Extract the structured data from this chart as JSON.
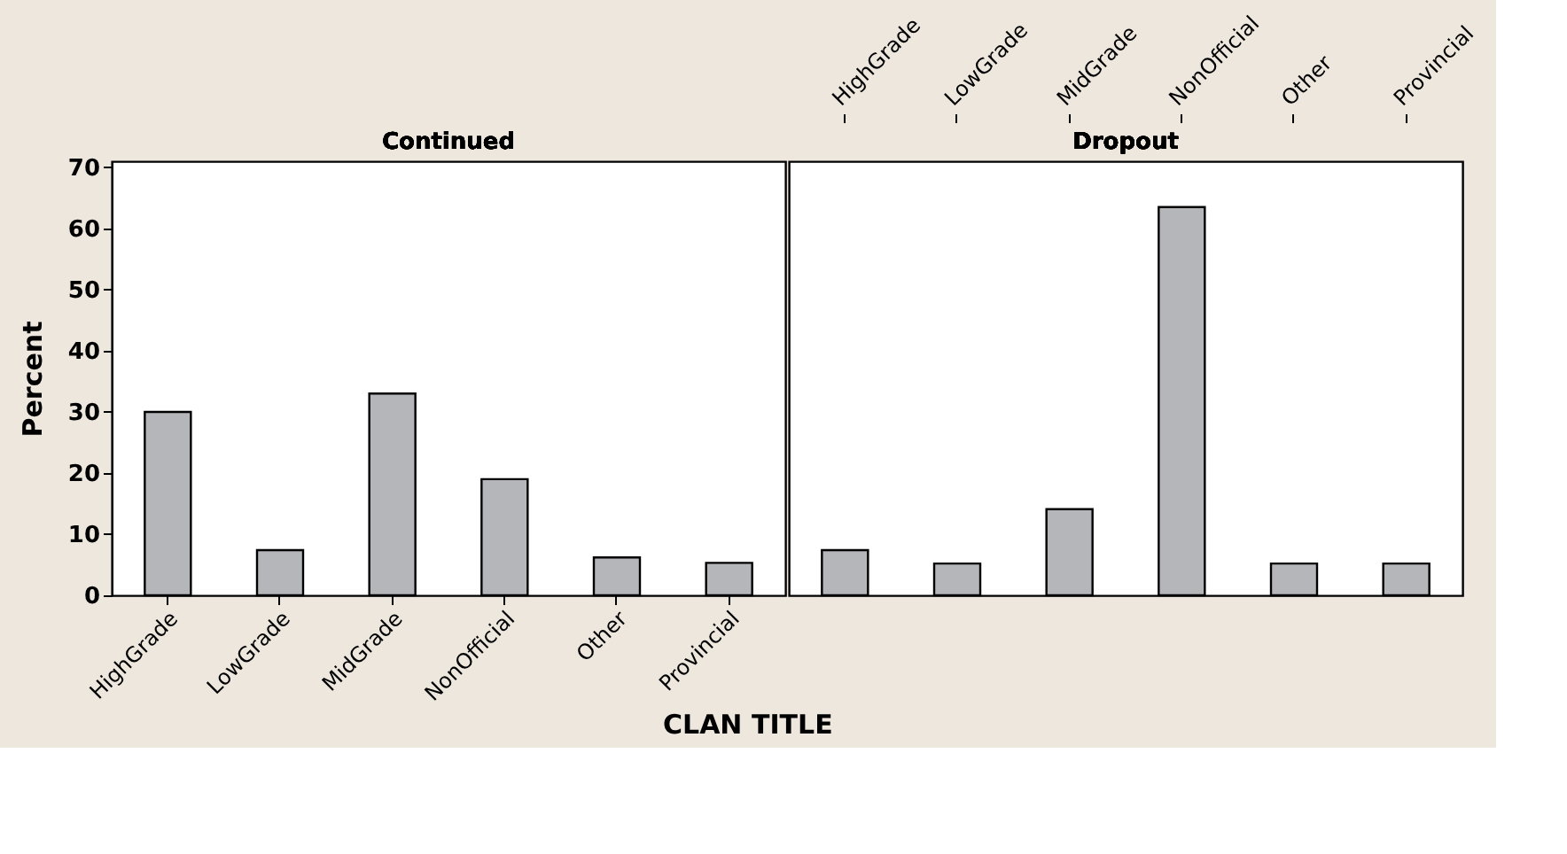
{
  "chart_data": [
    {
      "type": "bar",
      "title": "Continued",
      "xlabel": "CLAN TITLE",
      "ylabel": "Percent",
      "categories": [
        "HighGrade",
        "LowGrade",
        "MidGrade",
        "NonOfficial",
        "Other",
        "Provincial"
      ],
      "values": [
        30,
        7.4,
        33,
        19,
        6.2,
        5.3
      ],
      "color": "#b4b6ba",
      "ylim": [
        0,
        71
      ],
      "yticks": [
        0,
        10,
        20,
        30,
        40,
        50,
        60,
        70
      ],
      "grid": false
    },
    {
      "type": "bar",
      "title": "Dropout",
      "categories": [
        "HighGrade",
        "LowGrade",
        "MidGrade",
        "NonOfficial",
        "Other",
        "Provincial"
      ],
      "values": [
        7.4,
        5.2,
        14.1,
        63.5,
        5.2,
        5.2
      ],
      "color": "#b4b6ba",
      "ylim": [
        0,
        71
      ],
      "yticks": [
        0,
        10,
        20,
        30,
        40,
        50,
        60,
        70
      ],
      "grid": false,
      "tick_labels": "x"
    }
  ]
}
